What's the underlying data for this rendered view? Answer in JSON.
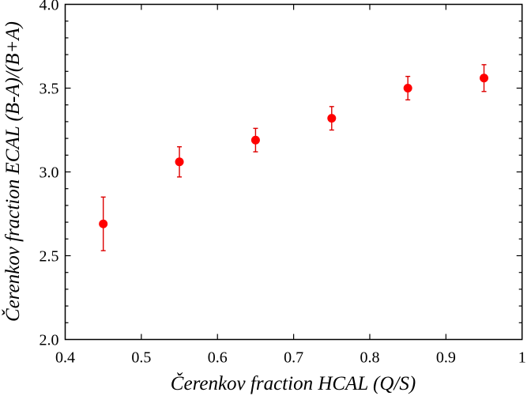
{
  "chart_data": {
    "type": "scatter",
    "title": "",
    "xlabel": "Čerenkov fraction HCAL (Q/S)",
    "ylabel": "Čerenkov fraction ECAL (B-A)/(B+A)",
    "xlim": [
      0.4,
      1.0
    ],
    "ylim": [
      2.0,
      4.0
    ],
    "x_major_ticks": [
      0.4,
      0.5,
      0.6,
      0.7,
      0.8,
      0.9,
      1.0
    ],
    "x_tick_labels": [
      "0.4",
      "0.5",
      "0.6",
      "0.7",
      "0.8",
      "0.9",
      "1"
    ],
    "y_major_ticks": [
      2.0,
      2.5,
      3.0,
      3.5,
      4.0
    ],
    "y_tick_labels": [
      "2.0",
      "2.5",
      "3.0",
      "3.5",
      "4.0"
    ],
    "y_minor_step": 0.1,
    "grid": false,
    "legend": null,
    "series": [
      {
        "name": "data",
        "color": "#ff0000",
        "errorbar_color": "#dd0000",
        "marker": "circle",
        "x": [
          0.45,
          0.55,
          0.65,
          0.75,
          0.85,
          0.95
        ],
        "y": [
          2.69,
          3.06,
          3.19,
          3.32,
          3.5,
          3.56
        ],
        "yerr": [
          0.16,
          0.09,
          0.07,
          0.07,
          0.07,
          0.08
        ]
      }
    ]
  }
}
